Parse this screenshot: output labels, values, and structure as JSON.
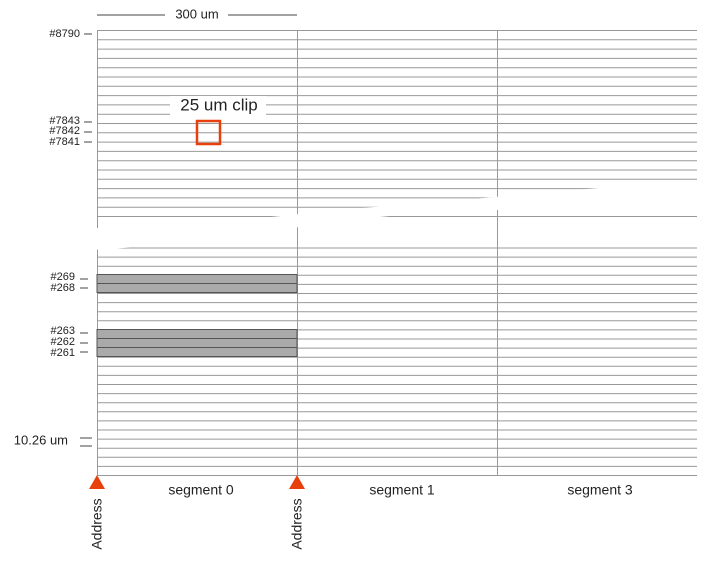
{
  "scale_label": "300 um",
  "clip_label": "25 um clip",
  "row_labels": [
    "#8790",
    "#7843",
    "#7842",
    "#7841",
    "#269",
    "#268",
    "#263",
    "#262",
    "#261"
  ],
  "pitch_label": "10.26 um",
  "segments": [
    "segment 0",
    "segment 1",
    "segment 3"
  ],
  "address_labels": [
    "Address",
    "Address"
  ]
}
